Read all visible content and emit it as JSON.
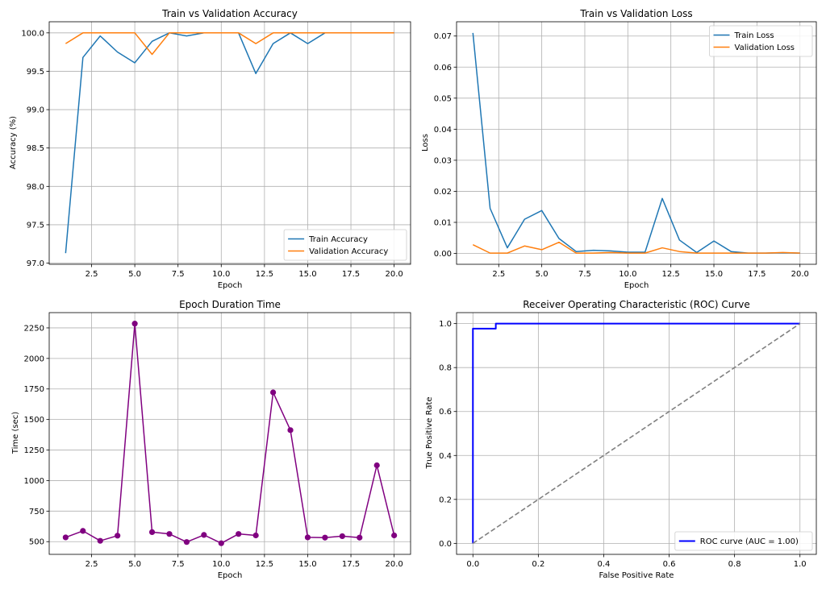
{
  "chart_data": [
    {
      "id": "accuracy",
      "type": "line",
      "title": "Train vs Validation Accuracy",
      "xlabel": "Epoch",
      "ylabel": "Accuracy (%)",
      "xlim": [
        0.05,
        20.95
      ],
      "ylim": [
        96.985,
        100.145
      ],
      "xticks": [
        "2.5",
        "5.0",
        "7.5",
        "10.0",
        "12.5",
        "15.0",
        "17.5",
        "20.0"
      ],
      "yticks": [
        "97.0",
        "97.5",
        "98.0",
        "98.5",
        "99.0",
        "99.5",
        "100.0"
      ],
      "grid": true,
      "legend": "lower-right",
      "x": [
        1,
        2,
        3,
        4,
        5,
        6,
        7,
        8,
        9,
        10,
        11,
        12,
        13,
        14,
        15,
        16,
        17,
        18,
        19,
        20
      ],
      "series": [
        {
          "name": "Train Accuracy",
          "color": "#1f77b4",
          "values": [
            97.13,
            99.68,
            99.96,
            99.75,
            99.61,
            99.89,
            100.0,
            99.96,
            100.0,
            100.0,
            100.0,
            99.47,
            99.86,
            100.0,
            99.86,
            100.0,
            100.0,
            100.0,
            100.0,
            100.0
          ]
        },
        {
          "name": "Validation Accuracy",
          "color": "#ff7f0e",
          "values": [
            99.86,
            100.0,
            100.0,
            100.0,
            100.0,
            99.72,
            100.0,
            100.0,
            100.0,
            100.0,
            100.0,
            99.86,
            100.0,
            100.0,
            100.0,
            100.0,
            100.0,
            100.0,
            100.0,
            100.0
          ]
        }
      ]
    },
    {
      "id": "loss",
      "type": "line",
      "title": "Train vs Validation Loss",
      "xlabel": "Epoch",
      "ylabel": "Loss",
      "xlim": [
        0.05,
        20.95
      ],
      "ylim": [
        -0.0035,
        0.0746
      ],
      "xticks": [
        "2.5",
        "5.0",
        "7.5",
        "10.0",
        "12.5",
        "15.0",
        "17.5",
        "20.0"
      ],
      "yticks": [
        "0.00",
        "0.01",
        "0.02",
        "0.03",
        "0.04",
        "0.05",
        "0.06",
        "0.07"
      ],
      "grid": true,
      "legend": "top-right",
      "x": [
        1,
        2,
        3,
        4,
        5,
        6,
        7,
        8,
        9,
        10,
        11,
        12,
        13,
        14,
        15,
        16,
        17,
        18,
        19,
        20
      ],
      "series": [
        {
          "name": "Train Loss",
          "color": "#1f77b4",
          "values": [
            0.071,
            0.0145,
            0.0018,
            0.011,
            0.0138,
            0.0048,
            0.0006,
            0.001,
            0.0008,
            0.0004,
            0.0004,
            0.0177,
            0.0043,
            0.0003,
            0.004,
            0.0006,
            0.0001,
            0.0001,
            0.0002,
            0.0001
          ]
        },
        {
          "name": "Validation Loss",
          "color": "#ff7f0e",
          "values": [
            0.0028,
            0.0001,
            0.0001,
            0.0024,
            0.0012,
            0.0036,
            0.0001,
            0.0001,
            0.0003,
            0.0001,
            0.0001,
            0.0018,
            0.0006,
            0.0001,
            0.0001,
            0.0001,
            0.0001,
            0.0001,
            0.0003,
            0.0001
          ]
        }
      ]
    },
    {
      "id": "duration",
      "type": "line",
      "title": "Epoch Duration Time",
      "xlabel": "Epoch",
      "ylabel": "Time (sec)",
      "xlim": [
        0.05,
        20.95
      ],
      "ylim": [
        396,
        2375
      ],
      "xticks": [
        "2.5",
        "5.0",
        "7.5",
        "10.0",
        "12.5",
        "15.0",
        "17.5",
        "20.0"
      ],
      "yticks": [
        "500",
        "750",
        "1000",
        "1250",
        "1500",
        "1750",
        "2000",
        "2250"
      ],
      "grid": true,
      "x": [
        1,
        2,
        3,
        4,
        5,
        6,
        7,
        8,
        9,
        10,
        11,
        12,
        13,
        14,
        15,
        16,
        17,
        18,
        19,
        20
      ],
      "series": [
        {
          "color": "#800080",
          "marker": "circle",
          "values": [
            535,
            588,
            507,
            549,
            2285,
            578,
            563,
            497,
            555,
            487,
            563,
            551,
            1722,
            1413,
            535,
            533,
            545,
            533,
            1125,
            551
          ]
        }
      ]
    },
    {
      "id": "roc",
      "type": "line",
      "title": "Receiver Operating Characteristic (ROC) Curve",
      "xlabel": "False Positive Rate",
      "ylabel": "True Positive Rate",
      "xlim": [
        -0.05,
        1.05
      ],
      "ylim": [
        -0.05,
        1.05
      ],
      "xticks": [
        "0.0",
        "0.2",
        "0.4",
        "0.6",
        "0.8",
        "1.0"
      ],
      "yticks": [
        "0.0",
        "0.2",
        "0.4",
        "0.6",
        "0.8",
        "1.0"
      ],
      "grid": true,
      "legend": "lower-right",
      "series": [
        {
          "name": "ROC curve (AUC = 1.00)",
          "color": "#0000ff",
          "x": [
            0.0,
            0.0,
            0.07,
            0.07,
            1.0
          ],
          "values": [
            0.0,
            0.977,
            0.977,
            1.0,
            1.0
          ]
        },
        {
          "color": "#808080",
          "dash": "dashed",
          "x": [
            0.0,
            1.0
          ],
          "values": [
            0.0,
            1.0
          ]
        }
      ]
    }
  ]
}
